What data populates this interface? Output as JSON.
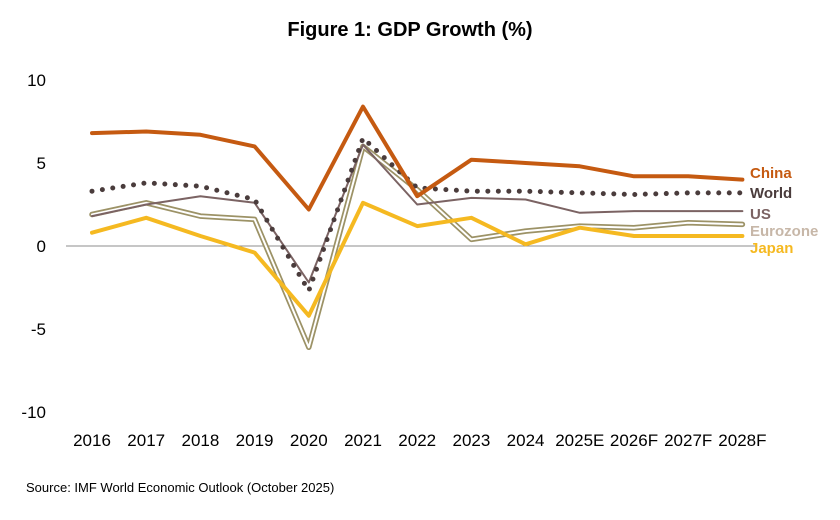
{
  "chart_data": {
    "type": "line",
    "title": "Figure 1: GDP Growth (%)",
    "xlabel": "",
    "ylabel": "",
    "ylim": [
      -10,
      10
    ],
    "yticks": [
      -10,
      -5,
      0,
      5,
      10
    ],
    "categories": [
      "2016",
      "2017",
      "2018",
      "2019",
      "2020",
      "2021",
      "2022",
      "2023",
      "2024",
      "2025E",
      "2026F",
      "2027F",
      "2028F"
    ],
    "series": [
      {
        "name": "China",
        "color": "#C55A11",
        "style": "solid",
        "values": [
          6.8,
          6.9,
          6.7,
          6.0,
          2.2,
          8.4,
          3.0,
          5.2,
          5.0,
          4.8,
          4.2,
          4.2,
          4.0
        ]
      },
      {
        "name": "World",
        "color": "#4A3C3C",
        "style": "dotted",
        "values": [
          3.3,
          3.8,
          3.6,
          2.8,
          -2.7,
          6.5,
          3.5,
          3.3,
          3.3,
          3.2,
          3.1,
          3.2,
          3.2
        ]
      },
      {
        "name": "US",
        "color": "#7B6363",
        "style": "solid",
        "values": [
          1.8,
          2.5,
          3.0,
          2.6,
          -2.2,
          6.1,
          2.5,
          2.9,
          2.8,
          2.0,
          2.1,
          2.1,
          2.1
        ]
      },
      {
        "name": "Eurozone",
        "color": "#9C9266",
        "style": "double",
        "values": [
          1.9,
          2.6,
          1.8,
          1.6,
          -6.1,
          6.0,
          3.4,
          0.4,
          0.9,
          1.2,
          1.1,
          1.4,
          1.3
        ]
      },
      {
        "name": "Japan",
        "color": "#F5B921",
        "style": "solid",
        "values": [
          0.8,
          1.7,
          0.6,
          -0.4,
          -4.2,
          2.6,
          1.2,
          1.7,
          0.1,
          1.1,
          0.6,
          0.6,
          0.6
        ]
      }
    ],
    "legend_colors": {
      "China": "#C55A11",
      "World": "#4A3C3C",
      "US": "#7B6363",
      "Eurozone": "#C7B7A8",
      "Japan": "#F5B921"
    },
    "grid": false,
    "zero_line": true,
    "legend": "right"
  },
  "source": "Source: IMF World Economic Outlook (October 2025)"
}
